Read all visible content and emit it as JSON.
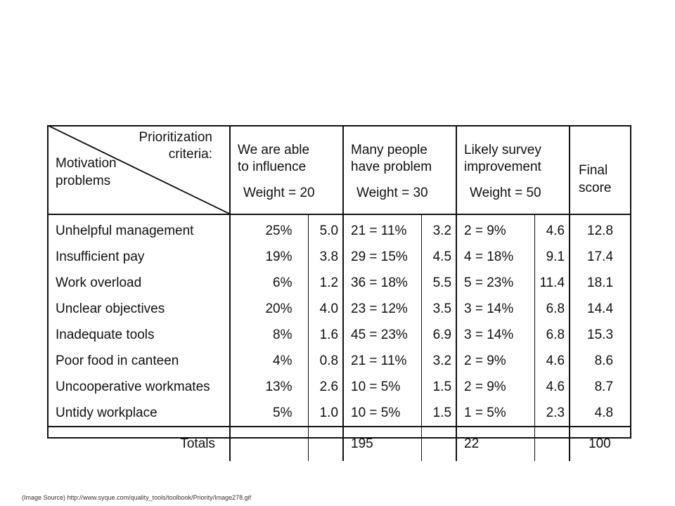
{
  "table": {
    "header": {
      "criteria_label_line1": "Prioritization",
      "criteria_label_line2": "criteria:",
      "problems_label_line1": "Motivation",
      "problems_label_line2": "problems",
      "col1_line1": "We are able",
      "col1_line2": "to influence",
      "col1_weight": "Weight = 20",
      "col2_line1": "Many people",
      "col2_line2": "have problem",
      "col2_weight": "Weight = 30",
      "col3_line1": "Likely survey",
      "col3_line2": "improvement",
      "col3_weight": "Weight = 50",
      "final_line1": "Final",
      "final_line2": "score"
    },
    "rows": [
      {
        "problem": "Unhelpful management",
        "influence_pct": "25%",
        "influence_w": "5.0",
        "people": "21 = 11%",
        "people_w": "3.2",
        "survey": "2 = 9%",
        "survey_w": "4.6",
        "final": "12.8"
      },
      {
        "problem": "Insufficient pay",
        "influence_pct": "19%",
        "influence_w": "3.8",
        "people": "29 = 15%",
        "people_w": "4.5",
        "survey": "4 = 18%",
        "survey_w": "9.1",
        "final": "17.4"
      },
      {
        "problem": "Work overload",
        "influence_pct": "6%",
        "influence_w": "1.2",
        "people": "36 = 18%",
        "people_w": "5.5",
        "survey": "5 = 23%",
        "survey_w": "11.4",
        "final": "18.1"
      },
      {
        "problem": "Unclear objectives",
        "influence_pct": "20%",
        "influence_w": "4.0",
        "people": "23 = 12%",
        "people_w": "3.5",
        "survey": "3 = 14%",
        "survey_w": "6.8",
        "final": "14.4"
      },
      {
        "problem": "Inadequate tools",
        "influence_pct": "8%",
        "influence_w": "1.6",
        "people": "45 = 23%",
        "people_w": "6.9",
        "survey": "3 = 14%",
        "survey_w": "6.8",
        "final": "15.3"
      },
      {
        "problem": "Poor food in canteen",
        "influence_pct": "4%",
        "influence_w": "0.8",
        "people": "21 = 11%",
        "people_w": "3.2",
        "survey": "2 = 9%",
        "survey_w": "4.6",
        "final": "8.6"
      },
      {
        "problem": "Uncooperative workmates",
        "influence_pct": "13%",
        "influence_w": "2.6",
        "people": "10 = 5%",
        "people_w": "1.5",
        "survey": "2 = 9%",
        "survey_w": "4.6",
        "final": "8.7"
      },
      {
        "problem": "Untidy workplace",
        "influence_pct": "5%",
        "influence_w": "1.0",
        "people": "10 = 5%",
        "people_w": "1.5",
        "survey": "1 = 5%",
        "survey_w": "2.3",
        "final": "4.8"
      }
    ],
    "totals": {
      "label": "Totals",
      "influence_pct": "",
      "influence_w": "",
      "people": "195",
      "people_w": "",
      "survey": "22",
      "survey_w": "",
      "final": "100"
    }
  },
  "source_caption": "(Image Source) http://www.syque.com/quality_tools/toolbook/Priority/Image278.gif"
}
